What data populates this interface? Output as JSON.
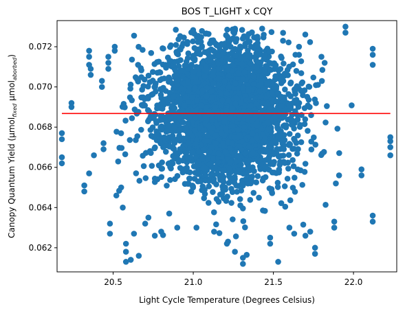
{
  "chart_data": {
    "type": "scatter",
    "title": "BOS T_LIGHT x CQY",
    "xlabel": "Light Cycle Temperature (Degrees Celsius)",
    "ylabel": {
      "prefix": "Canopy Quantum Yield (μmol",
      "sub1": "fixed",
      "middle": " μmol",
      "sub2": "aborbed",
      "suffix": ")"
    },
    "xlim": [
      20.15,
      22.27
    ],
    "ylim": [
      0.0608,
      0.0733
    ],
    "xticks": [
      20.5,
      21.0,
      21.5,
      22.0
    ],
    "xtick_labels": [
      "20.5",
      "21.0",
      "21.5",
      "22.0"
    ],
    "yticks": [
      0.062,
      0.064,
      0.066,
      0.068,
      0.07,
      0.072
    ],
    "ytick_labels": [
      "0.062",
      "0.064",
      "0.066",
      "0.068",
      "0.070",
      "0.072"
    ],
    "grid": false,
    "legend": "none",
    "series": [
      {
        "kind": "scatter",
        "color": "#1f77b4",
        "distribution": {
          "x_center": 21.2,
          "x_spread": 0.22,
          "y_center": 0.0687,
          "y_spread": 0.0018,
          "approx_count": 3000
        },
        "points": [
          [
            20.18,
            0.0677
          ],
          [
            20.18,
            0.0674
          ],
          [
            20.18,
            0.0665
          ],
          [
            20.18,
            0.0662
          ],
          [
            20.24,
            0.0692
          ],
          [
            20.24,
            0.069
          ],
          [
            20.32,
            0.0651
          ],
          [
            20.32,
            0.0648
          ],
          [
            20.35,
            0.0657
          ],
          [
            20.35,
            0.0718
          ],
          [
            20.35,
            0.0715
          ],
          [
            20.35,
            0.0711
          ],
          [
            20.36,
            0.0709
          ],
          [
            20.36,
            0.0706
          ],
          [
            20.38,
            0.0666
          ],
          [
            20.43,
            0.0703
          ],
          [
            20.43,
            0.07
          ],
          [
            20.44,
            0.0669
          ],
          [
            20.44,
            0.0672
          ],
          [
            20.47,
            0.0715
          ],
          [
            20.47,
            0.0712
          ],
          [
            20.47,
            0.0709
          ],
          [
            20.48,
            0.0632
          ],
          [
            20.48,
            0.0627
          ],
          [
            20.51,
            0.072
          ],
          [
            20.51,
            0.0718
          ],
          [
            20.52,
            0.0646
          ],
          [
            20.55,
            0.065
          ],
          [
            20.56,
            0.064
          ],
          [
            20.58,
            0.0622
          ],
          [
            20.58,
            0.0618
          ],
          [
            20.58,
            0.0613
          ],
          [
            20.61,
            0.0614
          ],
          [
            20.63,
            0.0627
          ],
          [
            20.66,
            0.0616
          ],
          [
            20.7,
            0.0632
          ],
          [
            20.72,
            0.0635
          ],
          [
            20.76,
            0.0626
          ],
          [
            20.8,
            0.0628
          ],
          [
            20.85,
            0.0637
          ],
          [
            20.9,
            0.063
          ],
          [
            21.0,
            0.0727
          ],
          [
            21.02,
            0.063
          ],
          [
            21.04,
            0.0724
          ],
          [
            21.13,
            0.0628
          ],
          [
            21.21,
            0.0622
          ],
          [
            21.26,
            0.0618
          ],
          [
            21.31,
            0.0615
          ],
          [
            21.31,
            0.0612
          ],
          [
            21.4,
            0.0725
          ],
          [
            21.43,
            0.0729
          ],
          [
            21.44,
            0.0726
          ],
          [
            21.48,
            0.0622
          ],
          [
            21.48,
            0.0625
          ],
          [
            21.53,
            0.0613
          ],
          [
            21.56,
            0.0723
          ],
          [
            21.6,
            0.063
          ],
          [
            21.63,
            0.0627
          ],
          [
            21.66,
            0.072
          ],
          [
            21.66,
            0.0716
          ],
          [
            21.7,
            0.0626
          ],
          [
            21.73,
            0.0628
          ],
          [
            21.76,
            0.0617
          ],
          [
            21.76,
            0.062
          ],
          [
            21.8,
            0.0715
          ],
          [
            21.82,
            0.0712
          ],
          [
            21.88,
            0.063
          ],
          [
            21.88,
            0.0633
          ],
          [
            21.89,
            0.0652
          ],
          [
            21.91,
            0.0656
          ],
          [
            21.95,
            0.073
          ],
          [
            21.95,
            0.0727
          ],
          [
            22.04,
            0.06
          ],
          [
            22.05,
            0.0659
          ],
          [
            22.05,
            0.0656
          ],
          [
            22.12,
            0.0719
          ],
          [
            22.12,
            0.0716
          ],
          [
            22.12,
            0.0711
          ],
          [
            22.12,
            0.0636
          ],
          [
            22.12,
            0.0633
          ],
          [
            22.23,
            0.0675
          ],
          [
            22.23,
            0.0673
          ],
          [
            22.23,
            0.067
          ],
          [
            22.23,
            0.0666
          ]
        ]
      },
      {
        "kind": "line",
        "color": "#ff0000",
        "x": [
          20.18,
          22.23
        ],
        "y": [
          0.06868,
          0.06868
        ]
      }
    ]
  }
}
